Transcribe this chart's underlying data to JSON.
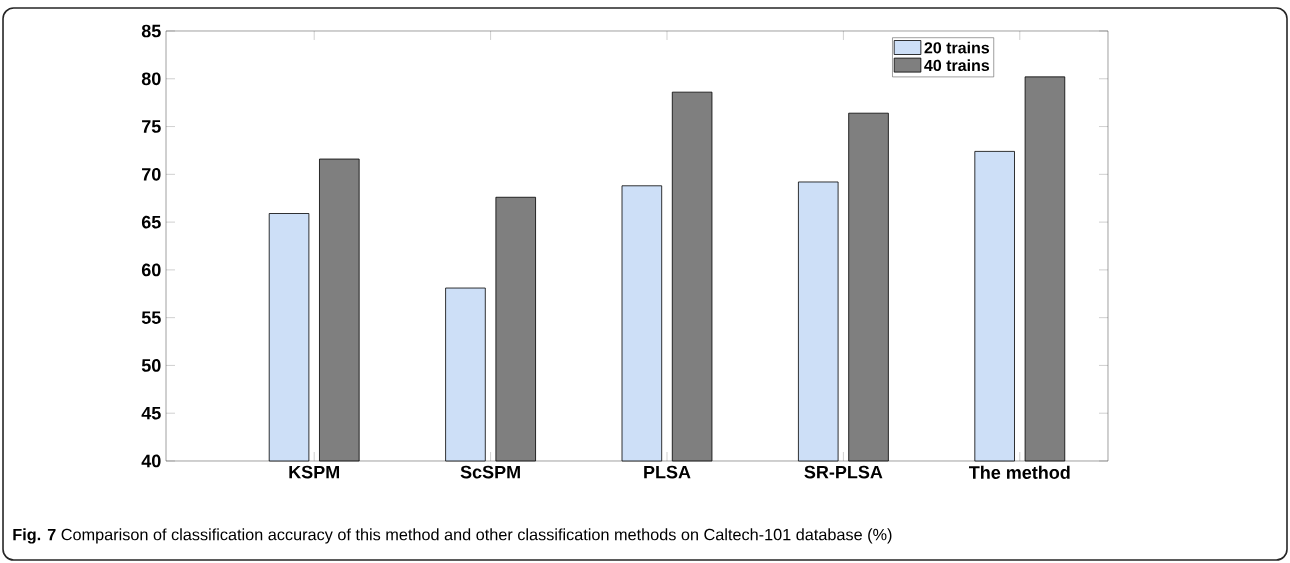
{
  "chart_data": {
    "type": "bar",
    "categories": [
      "KSPM",
      "ScSPM",
      "PLSA",
      "SR-PLSA",
      "The method"
    ],
    "series": [
      {
        "name": "20 trains",
        "color": "#cddff7",
        "values": [
          65.9,
          58.1,
          68.8,
          69.2,
          72.4
        ]
      },
      {
        "name": "40 trains",
        "color": "#7f7f7f",
        "values": [
          71.6,
          67.6,
          78.6,
          76.4,
          80.2
        ]
      }
    ],
    "ylim": [
      40,
      85
    ],
    "yticks": [
      40,
      45,
      50,
      55,
      60,
      65,
      70,
      75,
      80,
      85
    ],
    "legend": "top right",
    "annotations": [
      "**Fig. 7** Comparison of classification accuracy of this method and other classification methods on Caltech-101 database (%)"
    ]
  }
}
